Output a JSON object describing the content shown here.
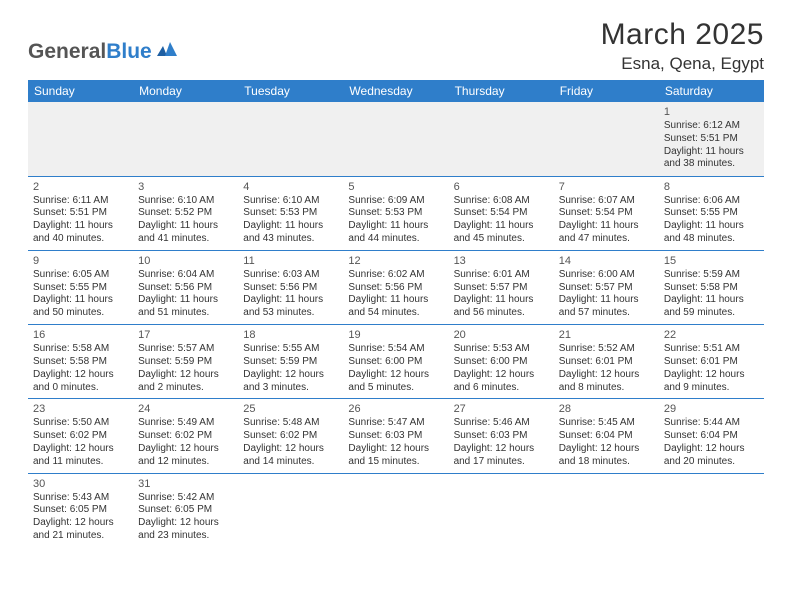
{
  "brand": {
    "part1": "General",
    "part2": "Blue"
  },
  "title": "March 2025",
  "location": "Esna, Qena, Egypt",
  "colors": {
    "header_bg": "#2f7eca",
    "header_text": "#ffffff",
    "border": "#2f7eca",
    "week1_bg": "#f0f0f0",
    "page_bg": "#ffffff",
    "text": "#333333",
    "logo_gray": "#555555",
    "logo_blue": "#2f7eca"
  },
  "weekdays": [
    "Sunday",
    "Monday",
    "Tuesday",
    "Wednesday",
    "Thursday",
    "Friday",
    "Saturday"
  ],
  "weeks": [
    [
      null,
      null,
      null,
      null,
      null,
      null,
      {
        "n": "1",
        "sr": "Sunrise: 6:12 AM",
        "ss": "Sunset: 5:51 PM",
        "d1": "Daylight: 11 hours",
        "d2": "and 38 minutes."
      }
    ],
    [
      {
        "n": "2",
        "sr": "Sunrise: 6:11 AM",
        "ss": "Sunset: 5:51 PM",
        "d1": "Daylight: 11 hours",
        "d2": "and 40 minutes."
      },
      {
        "n": "3",
        "sr": "Sunrise: 6:10 AM",
        "ss": "Sunset: 5:52 PM",
        "d1": "Daylight: 11 hours",
        "d2": "and 41 minutes."
      },
      {
        "n": "4",
        "sr": "Sunrise: 6:10 AM",
        "ss": "Sunset: 5:53 PM",
        "d1": "Daylight: 11 hours",
        "d2": "and 43 minutes."
      },
      {
        "n": "5",
        "sr": "Sunrise: 6:09 AM",
        "ss": "Sunset: 5:53 PM",
        "d1": "Daylight: 11 hours",
        "d2": "and 44 minutes."
      },
      {
        "n": "6",
        "sr": "Sunrise: 6:08 AM",
        "ss": "Sunset: 5:54 PM",
        "d1": "Daylight: 11 hours",
        "d2": "and 45 minutes."
      },
      {
        "n": "7",
        "sr": "Sunrise: 6:07 AM",
        "ss": "Sunset: 5:54 PM",
        "d1": "Daylight: 11 hours",
        "d2": "and 47 minutes."
      },
      {
        "n": "8",
        "sr": "Sunrise: 6:06 AM",
        "ss": "Sunset: 5:55 PM",
        "d1": "Daylight: 11 hours",
        "d2": "and 48 minutes."
      }
    ],
    [
      {
        "n": "9",
        "sr": "Sunrise: 6:05 AM",
        "ss": "Sunset: 5:55 PM",
        "d1": "Daylight: 11 hours",
        "d2": "and 50 minutes."
      },
      {
        "n": "10",
        "sr": "Sunrise: 6:04 AM",
        "ss": "Sunset: 5:56 PM",
        "d1": "Daylight: 11 hours",
        "d2": "and 51 minutes."
      },
      {
        "n": "11",
        "sr": "Sunrise: 6:03 AM",
        "ss": "Sunset: 5:56 PM",
        "d1": "Daylight: 11 hours",
        "d2": "and 53 minutes."
      },
      {
        "n": "12",
        "sr": "Sunrise: 6:02 AM",
        "ss": "Sunset: 5:56 PM",
        "d1": "Daylight: 11 hours",
        "d2": "and 54 minutes."
      },
      {
        "n": "13",
        "sr": "Sunrise: 6:01 AM",
        "ss": "Sunset: 5:57 PM",
        "d1": "Daylight: 11 hours",
        "d2": "and 56 minutes."
      },
      {
        "n": "14",
        "sr": "Sunrise: 6:00 AM",
        "ss": "Sunset: 5:57 PM",
        "d1": "Daylight: 11 hours",
        "d2": "and 57 minutes."
      },
      {
        "n": "15",
        "sr": "Sunrise: 5:59 AM",
        "ss": "Sunset: 5:58 PM",
        "d1": "Daylight: 11 hours",
        "d2": "and 59 minutes."
      }
    ],
    [
      {
        "n": "16",
        "sr": "Sunrise: 5:58 AM",
        "ss": "Sunset: 5:58 PM",
        "d1": "Daylight: 12 hours",
        "d2": "and 0 minutes."
      },
      {
        "n": "17",
        "sr": "Sunrise: 5:57 AM",
        "ss": "Sunset: 5:59 PM",
        "d1": "Daylight: 12 hours",
        "d2": "and 2 minutes."
      },
      {
        "n": "18",
        "sr": "Sunrise: 5:55 AM",
        "ss": "Sunset: 5:59 PM",
        "d1": "Daylight: 12 hours",
        "d2": "and 3 minutes."
      },
      {
        "n": "19",
        "sr": "Sunrise: 5:54 AM",
        "ss": "Sunset: 6:00 PM",
        "d1": "Daylight: 12 hours",
        "d2": "and 5 minutes."
      },
      {
        "n": "20",
        "sr": "Sunrise: 5:53 AM",
        "ss": "Sunset: 6:00 PM",
        "d1": "Daylight: 12 hours",
        "d2": "and 6 minutes."
      },
      {
        "n": "21",
        "sr": "Sunrise: 5:52 AM",
        "ss": "Sunset: 6:01 PM",
        "d1": "Daylight: 12 hours",
        "d2": "and 8 minutes."
      },
      {
        "n": "22",
        "sr": "Sunrise: 5:51 AM",
        "ss": "Sunset: 6:01 PM",
        "d1": "Daylight: 12 hours",
        "d2": "and 9 minutes."
      }
    ],
    [
      {
        "n": "23",
        "sr": "Sunrise: 5:50 AM",
        "ss": "Sunset: 6:02 PM",
        "d1": "Daylight: 12 hours",
        "d2": "and 11 minutes."
      },
      {
        "n": "24",
        "sr": "Sunrise: 5:49 AM",
        "ss": "Sunset: 6:02 PM",
        "d1": "Daylight: 12 hours",
        "d2": "and 12 minutes."
      },
      {
        "n": "25",
        "sr": "Sunrise: 5:48 AM",
        "ss": "Sunset: 6:02 PM",
        "d1": "Daylight: 12 hours",
        "d2": "and 14 minutes."
      },
      {
        "n": "26",
        "sr": "Sunrise: 5:47 AM",
        "ss": "Sunset: 6:03 PM",
        "d1": "Daylight: 12 hours",
        "d2": "and 15 minutes."
      },
      {
        "n": "27",
        "sr": "Sunrise: 5:46 AM",
        "ss": "Sunset: 6:03 PM",
        "d1": "Daylight: 12 hours",
        "d2": "and 17 minutes."
      },
      {
        "n": "28",
        "sr": "Sunrise: 5:45 AM",
        "ss": "Sunset: 6:04 PM",
        "d1": "Daylight: 12 hours",
        "d2": "and 18 minutes."
      },
      {
        "n": "29",
        "sr": "Sunrise: 5:44 AM",
        "ss": "Sunset: 6:04 PM",
        "d1": "Daylight: 12 hours",
        "d2": "and 20 minutes."
      }
    ],
    [
      {
        "n": "30",
        "sr": "Sunrise: 5:43 AM",
        "ss": "Sunset: 6:05 PM",
        "d1": "Daylight: 12 hours",
        "d2": "and 21 minutes."
      },
      {
        "n": "31",
        "sr": "Sunrise: 5:42 AM",
        "ss": "Sunset: 6:05 PM",
        "d1": "Daylight: 12 hours",
        "d2": "and 23 minutes."
      },
      null,
      null,
      null,
      null,
      null
    ]
  ]
}
